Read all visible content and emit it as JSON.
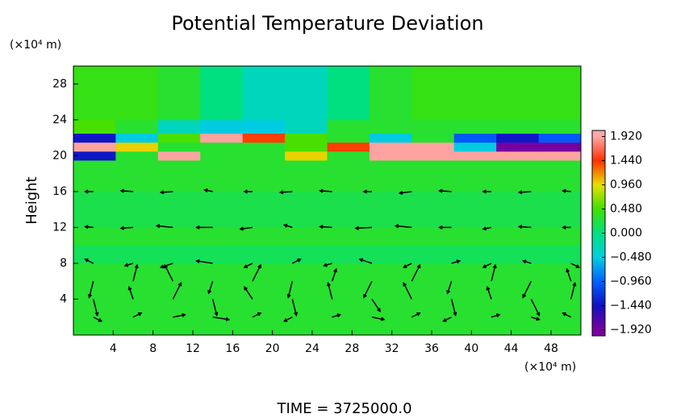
{
  "chart_data": {
    "type": "heatmap",
    "title": "Potential Temperature Deviation",
    "ylabel": "Height",
    "yunit": "(×10⁴ m)",
    "xunit": "(×10⁴ m)",
    "footer": "TIME = 3725000.0",
    "xlim": [
      0,
      51
    ],
    "ylim": [
      0,
      30
    ],
    "xticks": [
      4,
      8,
      12,
      16,
      20,
      24,
      28,
      32,
      36,
      40,
      44,
      48
    ],
    "yticks": [
      4,
      8,
      12,
      16,
      20,
      24,
      28
    ],
    "xbins": [
      0,
      4.25,
      8.5,
      12.75,
      17,
      21.25,
      25.5,
      29.75,
      34,
      38.25,
      42.5,
      46.75,
      51
    ],
    "ybins": [
      0,
      8,
      10,
      12,
      16,
      19.5,
      20.5,
      21.5,
      22.5,
      24,
      30
    ],
    "z": [
      [
        0.3,
        0.3,
        0.3,
        0.3,
        0.3,
        0.3,
        0.3,
        0.3,
        0.3,
        0.3,
        0.3,
        0.3
      ],
      [
        0.15,
        0.15,
        0.15,
        0.15,
        0.15,
        0.15,
        0.15,
        0.15,
        0.15,
        0.15,
        0.15,
        0.15
      ],
      [
        0.3,
        0.3,
        0.3,
        0.3,
        0.3,
        0.3,
        0.3,
        0.3,
        0.3,
        0.3,
        0.3,
        0.3
      ],
      [
        0.2,
        0.2,
        0.2,
        0.2,
        0.2,
        0.2,
        0.2,
        0.2,
        0.2,
        0.2,
        0.2,
        0.2
      ],
      [
        0.3,
        0.3,
        0.3,
        0.3,
        0.3,
        0.3,
        0.3,
        0.3,
        0.3,
        0.3,
        0.3,
        0.3
      ],
      [
        -1.4,
        0.3,
        1.9,
        0.3,
        0.3,
        1.0,
        0.3,
        1.9,
        1.9,
        1.9,
        1.9,
        1.9
      ],
      [
        1.9,
        1.0,
        0.3,
        0.3,
        0.3,
        0.5,
        1.4,
        1.9,
        1.9,
        -0.5,
        -1.9,
        -1.9
      ],
      [
        -1.4,
        -0.5,
        0.5,
        1.9,
        1.4,
        0.5,
        0.3,
        -0.5,
        0.3,
        -1.0,
        -1.4,
        -1.0
      ],
      [
        0.5,
        0.3,
        -0.3,
        -0.5,
        -0.5,
        -0.3,
        0.3,
        0.3,
        0.3,
        0.3,
        0.3,
        0.3
      ],
      [
        0.4,
        0.4,
        0.3,
        0.0,
        -0.3,
        -0.3,
        0.0,
        0.3,
        0.4,
        0.4,
        0.4,
        0.4
      ]
    ],
    "vx": [
      2,
      6,
      10,
      14,
      18,
      22,
      26,
      30,
      34,
      38,
      42,
      46,
      50
    ],
    "vy": [
      2,
      4,
      6,
      8,
      12,
      16
    ],
    "u": [
      [
        1,
        1,
        1.5,
        2,
        1,
        -1,
        1,
        1.5,
        1,
        -1,
        1,
        1,
        -1
      ],
      [
        0.5,
        -0.5,
        1,
        0.5,
        -1,
        0.5,
        -0.5,
        1,
        -1,
        0.5,
        -0.5,
        1,
        0.5
      ],
      [
        -0.5,
        0.5,
        -1,
        -0.5,
        1,
        -0.5,
        0.5,
        -1,
        1,
        -0.5,
        0.5,
        -1,
        -0.5
      ],
      [
        -1,
        -1,
        -1.5,
        -2,
        -1,
        1,
        -1,
        -1.5,
        -1,
        1,
        -1,
        -1,
        1
      ],
      [
        -1,
        -1.5,
        -2,
        -2,
        -1.5,
        -1,
        -1.5,
        -2,
        -2,
        -1.5,
        -1,
        -1.5,
        -1
      ],
      [
        -1,
        -1.5,
        -1.5,
        -1,
        -1,
        -1.5,
        -1.5,
        -1,
        -1.5,
        -1.5,
        -1,
        -1.5,
        -1
      ]
    ],
    "w": [
      [
        -0.5,
        0.5,
        0.3,
        -0.3,
        0.5,
        -0.5,
        0.3,
        -0.3,
        0.5,
        -0.5,
        0.3,
        -0.3,
        0.5
      ],
      [
        -2,
        1.5,
        2,
        -2,
        1.5,
        -2,
        2,
        -1.5,
        2,
        -2,
        1.5,
        -2,
        2
      ],
      [
        -2,
        2,
        2,
        -1.5,
        2,
        -2,
        1.5,
        -2,
        2,
        -1.5,
        2,
        -2,
        1.5
      ],
      [
        0.5,
        -0.3,
        -0.5,
        0.3,
        -0.5,
        0.5,
        -0.3,
        0.5,
        -0.5,
        0.3,
        -0.5,
        0.3,
        -0.5
      ],
      [
        0.1,
        -0.1,
        0.2,
        0,
        -0.2,
        0.3,
        0.1,
        -0.1,
        0.2,
        0,
        -0.2,
        0.1,
        0
      ],
      [
        0,
        0.1,
        -0.1,
        0.2,
        0,
        -0.1,
        0.1,
        0,
        -0.2,
        0.1,
        0,
        -0.1,
        0.1
      ]
    ],
    "clim": [
      -2.04,
      2.04
    ],
    "cticks": [
      {
        "value": 1.92,
        "label": "1.920"
      },
      {
        "value": 1.44,
        "label": "1.440"
      },
      {
        "value": 0.96,
        "label": "0.960"
      },
      {
        "value": 0.48,
        "label": "0.480"
      },
      {
        "value": 0,
        "label": "0.000"
      },
      {
        "value": -0.48,
        "label": "−0.480"
      },
      {
        "value": -0.96,
        "label": "−0.960"
      },
      {
        "value": -1.44,
        "label": "−1.440"
      },
      {
        "value": -1.92,
        "label": "−1.920"
      }
    ],
    "colors": [
      "#ffa8a8",
      "#ff3000",
      "#e8e000",
      "#40e000",
      "#00e080",
      "#00d0e0",
      "#0060ff",
      "#1010c0",
      "#7a00a0"
    ],
    "arrow_color": "#000000"
  }
}
